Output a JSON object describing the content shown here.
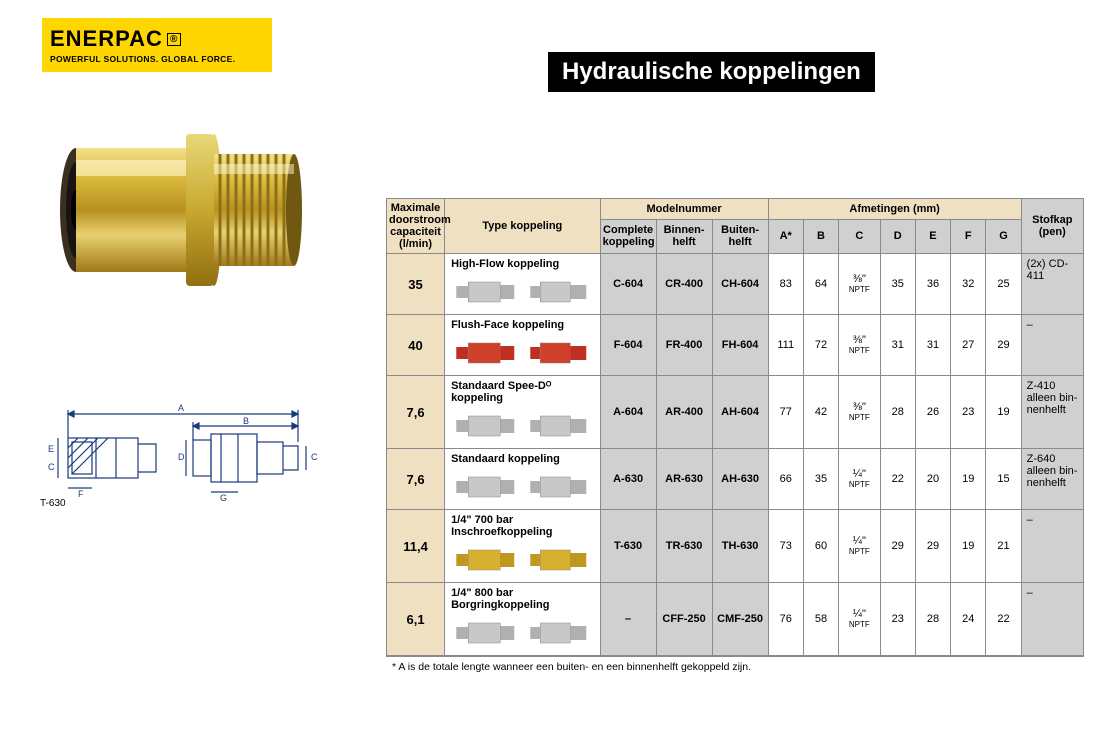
{
  "logo": {
    "brand": "ENERPAC",
    "tagline": "POWERFUL SOLUTIONS. GLOBAL FORCE.",
    "bg_color": "#ffd600"
  },
  "title": "Hydraulische koppelingen",
  "diagram_label": "T-630",
  "table": {
    "headers": {
      "cap": "Maximale doorstroom capaciteit (l/min)",
      "type": "Type koppeling",
      "model_group": "Modelnummer",
      "model_complete": "Complete koppeling",
      "model_inner": "Binnen-helft",
      "model_outer": "Buiten-helft",
      "dim_group": "Afmetingen (mm)",
      "A": "A*",
      "B": "B",
      "C": "C",
      "D": "D",
      "E": "E",
      "F": "F",
      "G": "G",
      "stof": "Stofkap (pen)"
    },
    "rows": [
      {
        "cap": "35",
        "type": "High-Flow koppeling",
        "complete": "C-604",
        "inner": "CR-400",
        "outer": "CH-604",
        "A": "83",
        "B": "64",
        "C_frac": "⅜\"",
        "C_unit": "NPTF",
        "D": "35",
        "E": "36",
        "F": "32",
        "G": "25",
        "stof": "(2x) CD-411",
        "colors": [
          "#c8c8c8",
          "#b0b0b0"
        ]
      },
      {
        "cap": "40",
        "type": "Flush-Face koppeling",
        "complete": "F-604",
        "inner": "FR-400",
        "outer": "FH-604",
        "A": "111",
        "B": "72",
        "C_frac": "⅜\"",
        "C_unit": "NPTF",
        "D": "31",
        "E": "31",
        "F": "27",
        "G": "29",
        "stof": "–",
        "colors": [
          "#d04028",
          "#c03020"
        ]
      },
      {
        "cap": "7,6",
        "type": "Standaard Spee-Dᴼ koppeling",
        "complete": "A-604",
        "inner": "AR-400",
        "outer": "AH-604",
        "A": "77",
        "B": "42",
        "C_frac": "⅜\"",
        "C_unit": "NPTF",
        "D": "28",
        "E": "26",
        "F": "23",
        "G": "19",
        "stof": "Z-410 alleen bin-nenhelft",
        "colors": [
          "#c8c8c8",
          "#b0b0b0"
        ]
      },
      {
        "cap": "7,6",
        "type": "Standaard koppeling",
        "complete": "A-630",
        "inner": "AR-630",
        "outer": "AH-630",
        "A": "66",
        "B": "35",
        "C_frac": "¼\"",
        "C_unit": "NPTF",
        "D": "22",
        "E": "20",
        "F": "19",
        "G": "15",
        "stof": "Z-640 alleen bin-nenhelft",
        "colors": [
          "#c8c8c8",
          "#b0b0b0"
        ]
      },
      {
        "cap": "11,4",
        "type": "1/4\" 700 bar Inschroefkoppeling",
        "complete": "T-630",
        "inner": "TR-630",
        "outer": "TH-630",
        "A": "73",
        "B": "60",
        "C_frac": "¼\"",
        "C_unit": "NPTF",
        "D": "29",
        "E": "29",
        "F": "19",
        "G": "21",
        "stof": "–",
        "colors": [
          "#d8b030",
          "#c09820"
        ]
      },
      {
        "cap": "6,1",
        "type": "1/4\" 800 bar Borgringkoppeling",
        "complete": "–",
        "inner": "CFF-250",
        "outer": "CMF-250",
        "A": "76",
        "B": "58",
        "C_frac": "¼\"",
        "C_unit": "NPTF",
        "D": "23",
        "E": "28",
        "F": "24",
        "G": "22",
        "stof": "–",
        "colors": [
          "#c8c8c8",
          "#b0b0b0"
        ]
      }
    ],
    "footnote": "*   A is de totale lengte wanneer een buiten- en een binnenhelft gekoppeld zijn."
  },
  "style": {
    "header_bg": "#f0e0c2",
    "sub_bg": "#d0d0d0",
    "border": "#8a8a8a",
    "title_fontsize": 24,
    "cell_fontsize": 11
  }
}
